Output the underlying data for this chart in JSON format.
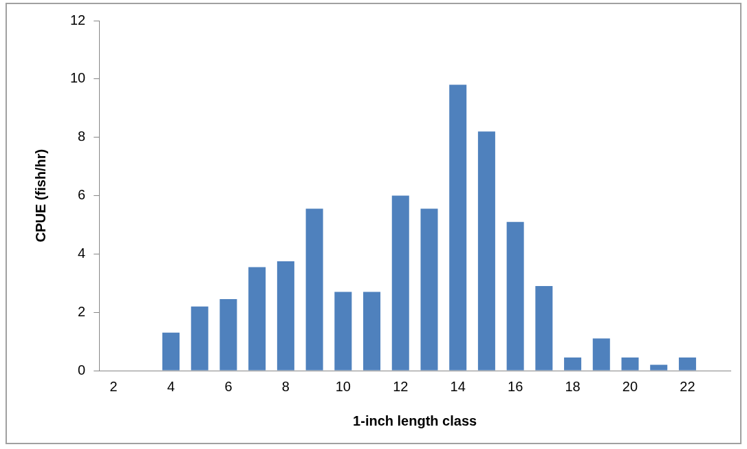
{
  "chart_data": {
    "type": "bar",
    "xlabel": "1-inch length class",
    "ylabel": "CPUE (fish/hr)",
    "categories": [
      "2",
      null,
      "4",
      null,
      "6",
      null,
      "8",
      null,
      "10",
      null,
      "12",
      null,
      "14",
      null,
      "16",
      null,
      "18",
      null,
      "20",
      null,
      "22",
      null
    ],
    "values": [
      0,
      0,
      1.3,
      2.2,
      2.45,
      3.55,
      3.75,
      5.55,
      2.7,
      2.7,
      6.0,
      5.55,
      9.8,
      8.2,
      5.1,
      2.9,
      0.45,
      1.1,
      0.45,
      0.2,
      0.45,
      null
    ],
    "color": "#4f81bd",
    "ylim": [
      0,
      12
    ],
    "yticks": [
      0,
      2,
      4,
      6,
      8,
      10,
      12
    ],
    "legend": false
  }
}
